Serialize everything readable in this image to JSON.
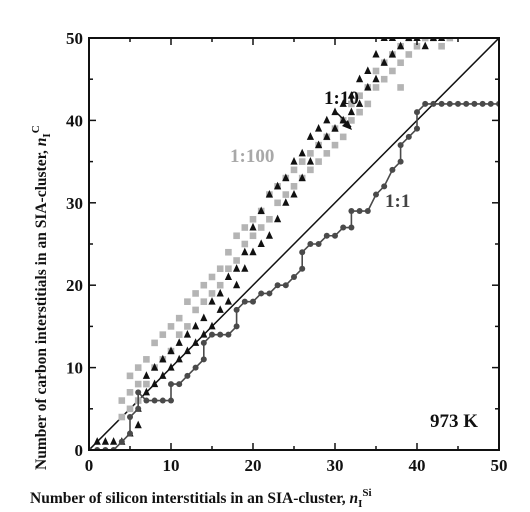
{
  "chart_data": {
    "type": "scatter",
    "xlabel_main": "Number of silicon interstitials in an SIA-cluster, ",
    "xlabel_var": "n",
    "xlabel_sub": "I",
    "xlabel_sup": "Si",
    "ylabel_main": "Number of carbon interstitials in an SIA-cluster, ",
    "ylabel_var": "n",
    "ylabel_sub": "I",
    "ylabel_sup": "C",
    "xlim": [
      0,
      50
    ],
    "ylim": [
      0,
      50
    ],
    "xticks": [
      "0",
      "10",
      "20",
      "30",
      "40",
      "50"
    ],
    "yticks": [
      "0",
      "10",
      "20",
      "30",
      "40",
      "50"
    ],
    "temperature_label": "973 K",
    "reference_line": {
      "x": [
        0,
        50
      ],
      "y": [
        0,
        50
      ]
    },
    "annotations": {
      "ratio_1_100": "1:100",
      "ratio_1_10": "1:10",
      "ratio_1_1": "1:1"
    },
    "colors": {
      "s100": "#b4b4b4",
      "s10": "#111111",
      "s1": "#4a4a4a",
      "line": "#111111"
    },
    "series": [
      {
        "label": "1:100",
        "marker": "square",
        "color": "#b4b4b4",
        "points": [
          [
            4,
            4
          ],
          [
            4,
            6
          ],
          [
            5,
            5
          ],
          [
            5,
            7
          ],
          [
            5,
            9
          ],
          [
            6,
            6
          ],
          [
            6,
            8
          ],
          [
            6,
            10
          ],
          [
            7,
            8
          ],
          [
            7,
            11
          ],
          [
            8,
            10
          ],
          [
            8,
            13
          ],
          [
            9,
            11
          ],
          [
            9,
            14
          ],
          [
            10,
            12
          ],
          [
            10,
            15
          ],
          [
            11,
            14
          ],
          [
            11,
            16
          ],
          [
            12,
            15
          ],
          [
            12,
            18
          ],
          [
            13,
            17
          ],
          [
            13,
            19
          ],
          [
            14,
            18
          ],
          [
            14,
            20
          ],
          [
            15,
            19
          ],
          [
            15,
            21
          ],
          [
            16,
            20
          ],
          [
            16,
            22
          ],
          [
            17,
            22
          ],
          [
            17,
            24
          ],
          [
            18,
            23
          ],
          [
            18,
            26
          ],
          [
            19,
            25
          ],
          [
            19,
            27
          ],
          [
            20,
            26
          ],
          [
            20,
            28
          ],
          [
            21,
            27
          ],
          [
            21,
            29
          ],
          [
            22,
            28
          ],
          [
            22,
            31
          ],
          [
            23,
            30
          ],
          [
            23,
            32
          ],
          [
            24,
            31
          ],
          [
            24,
            33
          ],
          [
            25,
            32
          ],
          [
            25,
            34
          ],
          [
            26,
            33
          ],
          [
            26,
            35
          ],
          [
            27,
            34
          ],
          [
            27,
            36
          ],
          [
            28,
            35
          ],
          [
            28,
            37
          ],
          [
            29,
            36
          ],
          [
            29,
            38
          ],
          [
            30,
            37
          ],
          [
            30,
            39
          ],
          [
            31,
            38
          ],
          [
            31,
            40
          ],
          [
            32,
            40
          ],
          [
            32,
            42
          ],
          [
            33,
            41
          ],
          [
            33,
            43
          ],
          [
            34,
            42
          ],
          [
            34,
            44
          ],
          [
            35,
            44
          ],
          [
            35,
            46
          ],
          [
            36,
            45
          ],
          [
            36,
            47
          ],
          [
            37,
            46
          ],
          [
            37,
            48
          ],
          [
            38,
            47
          ],
          [
            38,
            49
          ],
          [
            39,
            48
          ],
          [
            39,
            50
          ],
          [
            40,
            49
          ],
          [
            41,
            50
          ],
          [
            42,
            50
          ],
          [
            43,
            49
          ],
          [
            44,
            50
          ],
          [
            38,
            44
          ]
        ]
      },
      {
        "label": "1:10",
        "marker": "triangle",
        "color": "#111111",
        "points": [
          [
            1,
            1
          ],
          [
            2,
            1
          ],
          [
            3,
            1
          ],
          [
            4,
            1
          ],
          [
            5,
            2
          ],
          [
            6,
            3
          ],
          [
            6,
            5
          ],
          [
            7,
            7
          ],
          [
            7,
            9
          ],
          [
            8,
            8
          ],
          [
            8,
            10
          ],
          [
            9,
            9
          ],
          [
            9,
            11
          ],
          [
            10,
            10
          ],
          [
            10,
            12
          ],
          [
            11,
            11
          ],
          [
            11,
            13
          ],
          [
            12,
            12
          ],
          [
            12,
            14
          ],
          [
            13,
            13
          ],
          [
            13,
            15
          ],
          [
            14,
            14
          ],
          [
            14,
            16
          ],
          [
            15,
            15
          ],
          [
            15,
            18
          ],
          [
            16,
            17
          ],
          [
            16,
            19
          ],
          [
            17,
            18
          ],
          [
            17,
            21
          ],
          [
            18,
            20
          ],
          [
            18,
            22
          ],
          [
            19,
            22
          ],
          [
            19,
            24
          ],
          [
            20,
            24
          ],
          [
            20,
            27
          ],
          [
            21,
            25
          ],
          [
            21,
            29
          ],
          [
            22,
            26
          ],
          [
            22,
            31
          ],
          [
            23,
            28
          ],
          [
            23,
            32
          ],
          [
            24,
            30
          ],
          [
            24,
            33
          ],
          [
            25,
            31
          ],
          [
            25,
            35
          ],
          [
            26,
            33
          ],
          [
            26,
            36
          ],
          [
            27,
            35
          ],
          [
            27,
            38
          ],
          [
            28,
            37
          ],
          [
            28,
            39
          ],
          [
            29,
            38
          ],
          [
            29,
            40
          ],
          [
            30,
            39
          ],
          [
            30,
            41
          ],
          [
            31,
            40
          ],
          [
            31,
            42
          ],
          [
            32,
            41
          ],
          [
            32,
            43
          ],
          [
            33,
            42
          ],
          [
            33,
            45
          ],
          [
            34,
            44
          ],
          [
            34,
            46
          ],
          [
            35,
            45
          ],
          [
            35,
            48
          ],
          [
            36,
            47
          ],
          [
            36,
            50
          ],
          [
            37,
            48
          ],
          [
            37,
            50
          ],
          [
            38,
            49
          ],
          [
            39,
            50
          ],
          [
            40,
            50
          ],
          [
            41,
            49
          ],
          [
            42,
            50
          ],
          [
            43,
            50
          ]
        ]
      },
      {
        "label": "1:1",
        "marker": "circle",
        "color": "#4a4a4a",
        "points": [
          [
            0,
            0
          ],
          [
            1,
            0
          ],
          [
            2,
            0
          ],
          [
            3,
            0
          ],
          [
            4,
            1
          ],
          [
            5,
            2
          ],
          [
            5,
            4
          ],
          [
            6,
            5
          ],
          [
            6,
            7
          ],
          [
            7,
            6
          ],
          [
            8,
            6
          ],
          [
            9,
            6
          ],
          [
            10,
            6
          ],
          [
            10,
            8
          ],
          [
            11,
            8
          ],
          [
            12,
            9
          ],
          [
            13,
            10
          ],
          [
            14,
            11
          ],
          [
            14,
            13
          ],
          [
            15,
            14
          ],
          [
            16,
            14
          ],
          [
            17,
            14
          ],
          [
            18,
            15
          ],
          [
            18,
            17
          ],
          [
            19,
            18
          ],
          [
            20,
            18
          ],
          [
            21,
            19
          ],
          [
            22,
            19
          ],
          [
            23,
            20
          ],
          [
            24,
            20
          ],
          [
            25,
            21
          ],
          [
            26,
            22
          ],
          [
            26,
            24
          ],
          [
            27,
            25
          ],
          [
            28,
            25
          ],
          [
            29,
            26
          ],
          [
            30,
            26
          ],
          [
            31,
            27
          ],
          [
            32,
            27
          ],
          [
            32,
            29
          ],
          [
            33,
            29
          ],
          [
            34,
            29
          ],
          [
            35,
            31
          ],
          [
            36,
            32
          ],
          [
            37,
            34
          ],
          [
            38,
            35
          ],
          [
            38,
            37
          ],
          [
            39,
            38
          ],
          [
            40,
            39
          ],
          [
            40,
            41
          ],
          [
            41,
            42
          ],
          [
            42,
            42
          ],
          [
            43,
            42
          ],
          [
            44,
            42
          ],
          [
            45,
            42
          ],
          [
            46,
            42
          ],
          [
            47,
            42
          ],
          [
            48,
            42
          ],
          [
            49,
            42
          ],
          [
            50,
            42
          ]
        ]
      }
    ]
  }
}
